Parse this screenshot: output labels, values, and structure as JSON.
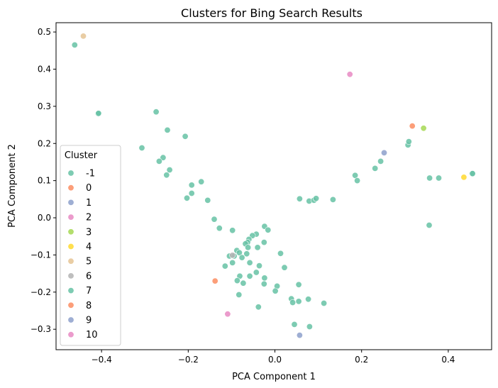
{
  "chart_data": {
    "type": "scatter",
    "title": "Clusters for Bing Search Results",
    "xlabel": "PCA Component 1",
    "ylabel": "PCA Component 2",
    "xlim": [
      -0.505,
      0.5
    ],
    "ylim": [
      -0.355,
      0.525
    ],
    "xticks": [
      -0.4,
      -0.2,
      0.0,
      0.2,
      0.4
    ],
    "xtick_labels": [
      "−0.4",
      "−0.2",
      "0.0",
      "0.2",
      "0.4"
    ],
    "yticks": [
      -0.3,
      -0.2,
      -0.1,
      0.0,
      0.1,
      0.2,
      0.3,
      0.4,
      0.5
    ],
    "ytick_labels": [
      "−0.3",
      "−0.2",
      "−0.1",
      "0.0",
      "0.1",
      "0.2",
      "0.3",
      "0.4",
      "0.5"
    ],
    "grid": false,
    "legend": {
      "title": "Cluster",
      "placement": "lower-left"
    },
    "series": [
      {
        "name": "-1",
        "color": "#66c2a5",
        "points": [
          [
            -0.462,
            0.465
          ],
          [
            -0.408,
            0.28
          ],
          [
            -0.274,
            0.285
          ],
          [
            -0.248,
            0.236
          ],
          [
            -0.207,
            0.219
          ],
          [
            -0.307,
            0.188
          ],
          [
            -0.258,
            0.162
          ],
          [
            -0.267,
            0.152
          ],
          [
            -0.243,
            0.129
          ],
          [
            -0.25,
            0.115
          ],
          [
            -0.17,
            0.097
          ],
          [
            -0.192,
            0.088
          ],
          [
            -0.192,
            0.066
          ],
          [
            -0.203,
            0.053
          ],
          [
            -0.155,
            0.047
          ],
          [
            -0.14,
            -0.004
          ],
          [
            -0.128,
            -0.028
          ],
          [
            -0.098,
            -0.034
          ],
          [
            -0.024,
            -0.023
          ],
          [
            -0.016,
            -0.033
          ],
          [
            -0.043,
            -0.044
          ],
          [
            -0.052,
            -0.048
          ],
          [
            -0.06,
            -0.058
          ],
          [
            -0.063,
            -0.066
          ],
          [
            -0.068,
            -0.07
          ],
          [
            -0.025,
            -0.066
          ],
          [
            -0.062,
            -0.08
          ],
          [
            -0.04,
            -0.08
          ],
          [
            -0.088,
            -0.088
          ],
          [
            -0.082,
            -0.094
          ],
          [
            -0.065,
            -0.097
          ],
          [
            -0.105,
            -0.103
          ],
          [
            -0.094,
            -0.103
          ],
          [
            -0.076,
            -0.107
          ],
          [
            -0.098,
            -0.121
          ],
          [
            -0.058,
            -0.121
          ],
          [
            -0.115,
            -0.13
          ],
          [
            -0.036,
            -0.129
          ],
          [
            -0.043,
            -0.147
          ],
          [
            -0.081,
            -0.157
          ],
          [
            -0.058,
            -0.157
          ],
          [
            -0.024,
            -0.162
          ],
          [
            -0.087,
            -0.169
          ],
          [
            -0.073,
            -0.176
          ],
          [
            -0.025,
            -0.178
          ],
          [
            0.013,
            -0.096
          ],
          [
            0.022,
            -0.134
          ],
          [
            0.005,
            -0.184
          ],
          [
            0.001,
            -0.197
          ],
          [
            -0.083,
            -0.207
          ],
          [
            -0.038,
            -0.24
          ],
          [
            0.038,
            -0.218
          ],
          [
            0.055,
            -0.18
          ],
          [
            0.055,
            -0.225
          ],
          [
            0.041,
            -0.228
          ],
          [
            0.077,
            -0.219
          ],
          [
            0.113,
            -0.23
          ],
          [
            0.045,
            -0.287
          ],
          [
            0.08,
            -0.293
          ],
          [
            0.057,
            0.051
          ],
          [
            0.079,
            0.045
          ],
          [
            0.09,
            0.047
          ],
          [
            0.095,
            0.052
          ],
          [
            0.134,
            0.049
          ],
          [
            0.185,
            0.114
          ],
          [
            0.19,
            0.1
          ],
          [
            0.231,
            0.133
          ],
          [
            0.244,
            0.152
          ],
          [
            0.307,
            0.196
          ],
          [
            0.309,
            0.205
          ],
          [
            0.357,
            0.107
          ],
          [
            0.378,
            0.107
          ],
          [
            0.356,
            -0.02
          ],
          [
            0.455,
            0.119
          ]
        ]
      },
      {
        "name": "0",
        "color": "#fc8d62",
        "points": [
          [
            0.317,
            0.247
          ]
        ]
      },
      {
        "name": "1",
        "color": "#8da0cb",
        "points": [
          [
            0.252,
            0.175
          ]
        ]
      },
      {
        "name": "2",
        "color": "#e78ac3",
        "points": [
          [
            0.173,
            0.386
          ]
        ]
      },
      {
        "name": "3",
        "color": "#a6d854",
        "points": [
          [
            0.343,
            0.241
          ]
        ]
      },
      {
        "name": "4",
        "color": "#ffd92f",
        "points": [
          [
            0.436,
            0.109
          ]
        ]
      },
      {
        "name": "5",
        "color": "#e5c494",
        "points": [
          [
            -0.442,
            0.489
          ]
        ]
      },
      {
        "name": "6",
        "color": "#b3b3b3",
        "points": [
          [
            -0.098,
            -0.101
          ]
        ]
      },
      {
        "name": "7",
        "color": "#66c2a5",
        "points": [
          [
            -0.407,
            0.281
          ],
          [
            0.456,
            0.119
          ]
        ]
      },
      {
        "name": "8",
        "color": "#fc8d62",
        "points": [
          [
            -0.138,
            -0.17
          ]
        ]
      },
      {
        "name": "9",
        "color": "#8da0cb",
        "points": [
          [
            0.057,
            -0.316
          ]
        ]
      },
      {
        "name": "10",
        "color": "#e78ac3",
        "points": [
          [
            -0.109,
            -0.259
          ]
        ]
      }
    ]
  }
}
